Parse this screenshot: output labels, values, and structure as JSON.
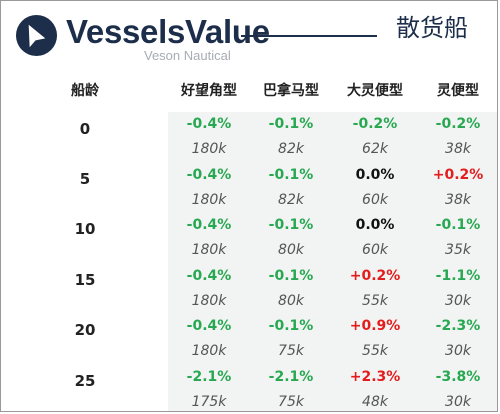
{
  "brand": {
    "name": "VesselsValue",
    "sub": "Veson Nautical"
  },
  "section_title": "散货船",
  "table": {
    "headers": [
      "船龄",
      "好望角型",
      "巴拿马型",
      "大灵便型",
      "灵便型"
    ],
    "rows": [
      {
        "age": "0",
        "changes": [
          "-0.4%",
          "-0.1%",
          "-0.2%",
          "-0.2%"
        ],
        "values": [
          "180k",
          "82k",
          "62k",
          "38k"
        ]
      },
      {
        "age": "5",
        "changes": [
          "-0.4%",
          "-0.1%",
          "0.0%",
          "+0.2%"
        ],
        "values": [
          "180k",
          "82k",
          "60k",
          "38k"
        ]
      },
      {
        "age": "10",
        "changes": [
          "-0.4%",
          "-0.1%",
          "0.0%",
          "-0.1%"
        ],
        "values": [
          "180k",
          "80k",
          "60k",
          "35k"
        ]
      },
      {
        "age": "15",
        "changes": [
          "-0.4%",
          "-0.1%",
          "+0.2%",
          "-1.1%"
        ],
        "values": [
          "180k",
          "80k",
          "55k",
          "30k"
        ]
      },
      {
        "age": "20",
        "changes": [
          "-0.4%",
          "-0.1%",
          "+0.9%",
          "-2.3%"
        ],
        "values": [
          "180k",
          "75k",
          "55k",
          "30k"
        ]
      },
      {
        "age": "25",
        "changes": [
          "-2.1%",
          "-2.1%",
          "+2.3%",
          "-3.8%"
        ],
        "values": [
          "175k",
          "75k",
          "48k",
          "30k"
        ]
      }
    ]
  },
  "colors": {
    "decrease": "#27a851",
    "increase": "#e31d1d",
    "unchanged": "#111111",
    "brand": "#1d2e4a"
  }
}
